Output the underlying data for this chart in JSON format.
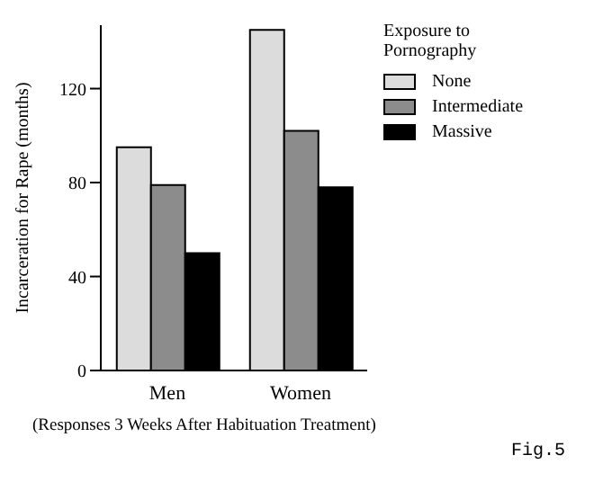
{
  "chart_data": {
    "type": "bar",
    "ylabel": "Incarceration for Rape (months)",
    "legend_title": "Exposure to Pornography",
    "categories": [
      "Men",
      "Women"
    ],
    "series": [
      {
        "name": "None",
        "color": "#dcdcdc",
        "values": [
          95,
          145
        ]
      },
      {
        "name": "Intermediate",
        "color": "#8c8c8c",
        "values": [
          79,
          102
        ]
      },
      {
        "name": "Massive",
        "color": "#000000",
        "values": [
          50,
          78
        ]
      }
    ],
    "ylim": [
      0,
      147
    ],
    "yticks": [
      0,
      40,
      80,
      120
    ],
    "grid": false,
    "legend": "top right",
    "annotations": [
      "(Responses 3 Weeks After Habituation Treatment)",
      "Fig.5"
    ]
  }
}
